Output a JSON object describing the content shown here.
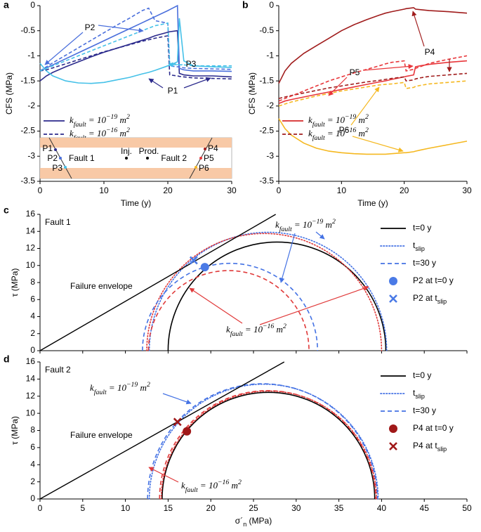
{
  "chart_data": [
    {
      "type": "line",
      "panel": "a",
      "ylabel": "CFS (MPa)",
      "xlabel": "Time (y)",
      "xlim": [
        0,
        30
      ],
      "xticks": [
        0,
        10,
        20,
        30
      ],
      "ylim": [
        -3.5,
        0
      ],
      "yticks": [
        -3.5,
        -3,
        -2.5,
        -2,
        -1.5,
        -1,
        -0.5,
        0
      ],
      "x": [
        0,
        1,
        2,
        4,
        6,
        8,
        10,
        12,
        14,
        16,
        17,
        18,
        20,
        20.3,
        21.5,
        21.8,
        22.5,
        24,
        27,
        30
      ],
      "groups": [
        {
          "label": [
            "k",
            "fault",
            " = 10",
            "−19",
            " m",
            "2"
          ],
          "dash": false,
          "legend_color": "#2b2a8c",
          "series": [
            {
              "color": "#2b2a8c",
              "values": [
                -1.5,
                -1.4,
                -1.33,
                -1.22,
                -1.12,
                -1.02,
                -0.93,
                -0.85,
                -0.77,
                -0.69,
                -0.65,
                -0.6,
                -0.53,
                -0.52,
                -0.5,
                -1.35,
                -1.38,
                -1.4,
                -1.4,
                -1.42
              ]
            },
            {
              "color": "#4a6fdc",
              "values": [
                -1.3,
                -1.24,
                -1.18,
                -1.06,
                -0.94,
                -0.82,
                -0.7,
                -0.58,
                -0.46,
                -0.34,
                -0.28,
                -0.22,
                -0.1,
                -0.08,
                0,
                -1.25,
                -1.28,
                -1.3,
                -1.3,
                -1.31
              ]
            },
            {
              "color": "#45c1e8",
              "values": [
                -1.15,
                -1.3,
                -1.4,
                -1.5,
                -1.54,
                -1.55,
                -1.53,
                -1.48,
                -1.43,
                -1.36,
                -1.33,
                -1.29,
                -1.2,
                -1.19,
                -1.12,
                -0.25,
                -1.1,
                -1.2,
                -1.22,
                -1.23
              ]
            }
          ]
        },
        {
          "label": [
            "k",
            "fault",
            " = 10",
            "−16",
            " m",
            "2"
          ],
          "dash": true,
          "legend_color": "#2b2a8c",
          "series": [
            {
              "color": "#2b2a8c",
              "values": [
                -1.3,
                -1.28,
                -1.24,
                -1.16,
                -1.08,
                -1.0,
                -0.92,
                -0.85,
                -0.78,
                -0.71,
                -0.68,
                -0.65,
                -0.6,
                -1.38,
                -1.4,
                -1.41,
                -1.42,
                -1.44,
                -1.45,
                -1.46
              ]
            },
            {
              "color": "#4a6fdc",
              "values": [
                -1.3,
                -1.22,
                -1.14,
                -0.99,
                -0.84,
                -0.69,
                -0.54,
                -0.39,
                -0.25,
                -0.1,
                -0.05,
                -0.3,
                -0.35,
                -1.2,
                -1.22,
                -1.22,
                -1.24,
                -1.25,
                -1.26,
                -1.27
              ]
            },
            {
              "color": "#45c1e8",
              "values": [
                -1.3,
                -1.25,
                -1.2,
                -1.1,
                -1.0,
                -0.9,
                -0.8,
                -0.7,
                -0.6,
                -0.5,
                -0.45,
                -0.4,
                -0.35,
                -1.15,
                -1.17,
                -1.18,
                -1.18,
                -1.2,
                -1.2,
                -1.2
              ]
            }
          ]
        }
      ],
      "annotations": [
        {
          "text": "P1",
          "color": "#2b2a8c"
        },
        {
          "text": "P2",
          "color": "#4a6fdc"
        },
        {
          "text": "P3",
          "color": "#45c1e8"
        }
      ],
      "inset_labels": [
        "P1",
        "P2",
        "P3",
        "Fault 1",
        "Inj.",
        "Prod.",
        "Fault 2",
        "P4",
        "P5",
        "P6"
      ]
    },
    {
      "type": "line",
      "panel": "b",
      "ylabel": "CFS (MPa)",
      "xlabel": "Time (y)",
      "xlim": [
        0,
        30
      ],
      "xticks": [
        0,
        10,
        20,
        30
      ],
      "ylim": [
        -3.5,
        0
      ],
      "yticks": [
        -3.5,
        -3,
        -2.5,
        -2,
        -1.5,
        -1,
        -0.5,
        0
      ],
      "x": [
        0,
        1,
        2,
        4,
        6,
        8,
        10,
        12,
        14,
        16,
        17,
        18,
        20,
        20.3,
        21.5,
        21.8,
        22.5,
        24,
        27,
        30
      ],
      "groups": [
        {
          "label": [
            "k",
            "fault",
            " = 10",
            "−19",
            " m",
            "2"
          ],
          "dash": false,
          "legend_color": "#d42a2a",
          "series": [
            {
              "color": "#a01c1c",
              "values": [
                -1.55,
                -1.3,
                -1.15,
                -0.95,
                -0.8,
                -0.65,
                -0.5,
                -0.38,
                -0.28,
                -0.19,
                -0.15,
                -0.12,
                -0.07,
                -0.06,
                -0.04,
                -0.07,
                -0.08,
                -0.1,
                -0.12,
                -0.15
              ]
            },
            {
              "color": "#e8363a",
              "values": [
                -1.95,
                -1.9,
                -1.87,
                -1.82,
                -1.77,
                -1.72,
                -1.67,
                -1.62,
                -1.57,
                -1.52,
                -1.5,
                -1.47,
                -1.42,
                -1.41,
                -1.38,
                -1.22,
                -1.2,
                -1.17,
                -1.13,
                -1.1
              ]
            },
            {
              "color": "#f5b820",
              "values": [
                -2.25,
                -2.45,
                -2.58,
                -2.74,
                -2.84,
                -2.9,
                -2.93,
                -2.95,
                -2.96,
                -2.96,
                -2.96,
                -2.95,
                -2.93,
                -2.93,
                -2.91,
                -2.9,
                -2.88,
                -2.84,
                -2.77,
                -2.7
              ]
            }
          ]
        },
        {
          "label": [
            "k",
            "fault",
            " = 10",
            "−16",
            " m",
            "2"
          ],
          "dash": true,
          "legend_color": "#a01c1c",
          "series": [
            {
              "color": "#a01c1c",
              "values": [
                -1.85,
                -1.82,
                -1.79,
                -1.74,
                -1.69,
                -1.64,
                -1.6,
                -1.56,
                -1.52,
                -1.49,
                -1.47,
                -1.45,
                -1.42,
                -1.5,
                -1.48,
                -1.46,
                -1.44,
                -1.41,
                -1.38,
                -1.35
              ]
            },
            {
              "color": "#e8363a",
              "values": [
                -1.9,
                -1.85,
                -1.8,
                -1.7,
                -1.6,
                -1.5,
                -1.42,
                -1.34,
                -1.27,
                -1.2,
                -1.16,
                -1.13,
                -1.1,
                -1.3,
                -1.27,
                -1.25,
                -1.22,
                -1.15,
                -1.07,
                -1.0
              ]
            },
            {
              "color": "#f5b820",
              "values": [
                -2.0,
                -1.96,
                -1.92,
                -1.86,
                -1.8,
                -1.75,
                -1.7,
                -1.66,
                -1.62,
                -1.58,
                -1.57,
                -1.56,
                -1.53,
                -1.65,
                -1.63,
                -1.61,
                -1.59,
                -1.56,
                -1.53,
                -1.5
              ]
            }
          ]
        }
      ],
      "annotations": [
        {
          "text": "P4",
          "color": "#a01c1c"
        },
        {
          "text": "P5",
          "color": "#e8363a"
        },
        {
          "text": "P6",
          "color": "#f5b820"
        }
      ]
    },
    {
      "type": "mohr",
      "panel": "c",
      "title": "Fault 1",
      "ylabel": "τ (MPa)",
      "xtick_labels": false,
      "xlim": [
        0,
        50
      ],
      "xticks": [
        0,
        5,
        10,
        15,
        20,
        25,
        30,
        35,
        40,
        45,
        50
      ],
      "ylim": [
        0,
        16
      ],
      "yticks": [
        0,
        2,
        4,
        6,
        8,
        10,
        12,
        14,
        16
      ],
      "envelope": {
        "label": "Failure envelope",
        "x": [
          0,
          27.6
        ],
        "y": [
          0,
          16
        ]
      },
      "circles": [
        {
          "color": "#000000",
          "dash": "solid",
          "center": 27.75,
          "radius": 12.75
        },
        {
          "color": "#4472e4",
          "dash": "dotted",
          "center": 26.7,
          "radius": 13.9
        },
        {
          "color": "#e03a3a",
          "dash": "dotted",
          "center": 26.25,
          "radius": 13.75
        },
        {
          "color": "#4472e4",
          "dash": "dashed",
          "center": 22.25,
          "radius": 10.25
        },
        {
          "color": "#e03a3a",
          "dash": "dashed",
          "center": 22.1,
          "radius": 9.4
        }
      ],
      "points": [
        {
          "x": 19.3,
          "y": 9.8,
          "marker": "circle",
          "color": "#4a7ae6"
        },
        {
          "x": 18,
          "y": 10.6,
          "marker": "x",
          "color": "#4a7ae6"
        }
      ],
      "legend": [
        {
          "label": [
            "t=0 y"
          ],
          "color": "#000000",
          "dash": "solid"
        },
        {
          "label": [
            "t",
            "slip"
          ],
          "color": "#4472e4",
          "dash": "dotted"
        },
        {
          "label": [
            "t=30 y"
          ],
          "color": "#4472e4",
          "dash": "dashed"
        },
        {
          "label": [
            "P2 at t=0 y"
          ],
          "color": "#4a7ae6",
          "marker": "circle"
        },
        {
          "label": [
            "P2 at t",
            "slip"
          ],
          "color": "#4a7ae6",
          "marker": "x"
        }
      ],
      "annotations": [
        {
          "label": [
            "k",
            "fault",
            " = 10",
            "−19",
            " m",
            "2"
          ],
          "color": "#4472e4"
        },
        {
          "label": [
            "k",
            "fault",
            " = 10",
            "−16",
            " m",
            "2"
          ],
          "color": "#e03a3a"
        }
      ]
    },
    {
      "type": "mohr",
      "panel": "d",
      "title": "Fault 2",
      "ylabel": "τ (MPa)",
      "xlabel": [
        "σ´",
        "n",
        " (MPa)"
      ],
      "xtick_labels": true,
      "xlim": [
        0,
        50
      ],
      "xticks": [
        0,
        5,
        10,
        15,
        20,
        25,
        30,
        35,
        40,
        45,
        50
      ],
      "ylim": [
        0,
        16
      ],
      "yticks": [
        0,
        2,
        4,
        6,
        8,
        10,
        12,
        14,
        16
      ],
      "envelope": {
        "label": "Failure envelope",
        "x": [
          0,
          28.6
        ],
        "y": [
          0,
          16
        ]
      },
      "circles": [
        {
          "color": "#000000",
          "dash": "solid",
          "center": 26.75,
          "radius": 12.45
        },
        {
          "color": "#4472e4",
          "dash": "dotted",
          "center": 26.2,
          "radius": 13.4
        },
        {
          "color": "#4472e4",
          "dash": "dashed",
          "center": 26.05,
          "radius": 13.45
        },
        {
          "color": "#e03a3a",
          "dash": "dotted",
          "center": 26.8,
          "radius": 12.6
        },
        {
          "color": "#e03a3a",
          "dash": "dashed",
          "center": 26.65,
          "radius": 12.65
        }
      ],
      "points": [
        {
          "x": 17.2,
          "y": 7.9,
          "marker": "circle",
          "color": "#a01818"
        },
        {
          "x": 16.1,
          "y": 9.0,
          "marker": "x",
          "color": "#a01818"
        }
      ],
      "legend": [
        {
          "label": [
            "t=0 y"
          ],
          "color": "#000000",
          "dash": "solid"
        },
        {
          "label": [
            "t",
            "slip"
          ],
          "color": "#4472e4",
          "dash": "dotted"
        },
        {
          "label": [
            "t=30 y"
          ],
          "color": "#4472e4",
          "dash": "dashed"
        },
        {
          "label": [
            "P4 at t=0 y"
          ],
          "color": "#a01818",
          "marker": "circle"
        },
        {
          "label": [
            "P4 at t",
            "slip"
          ],
          "color": "#a01818",
          "marker": "x"
        }
      ],
      "annotations": [
        {
          "label": [
            "k",
            "fault",
            " = 10",
            "−19",
            " m",
            "2"
          ],
          "color": "#4472e4"
        },
        {
          "label": [
            "k",
            "fault",
            " = 10",
            "−16",
            " m",
            "2"
          ],
          "color": "#e03a3a"
        }
      ]
    }
  ]
}
